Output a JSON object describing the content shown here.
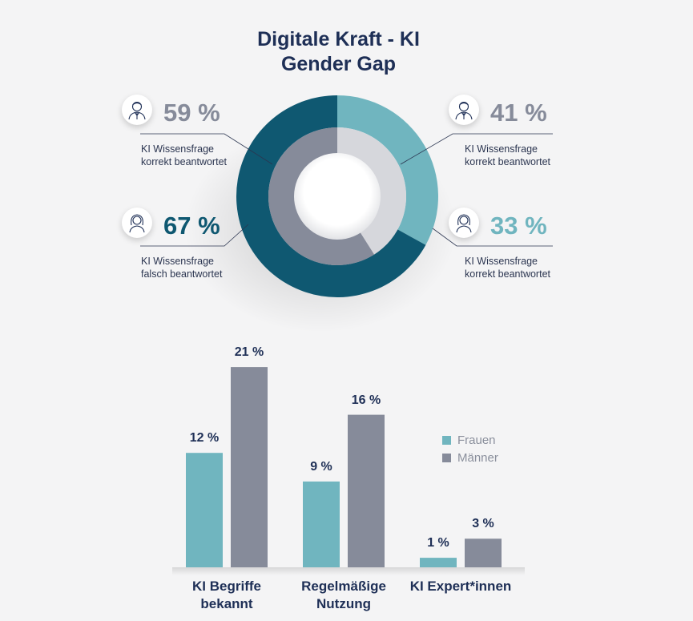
{
  "title": {
    "line1": "Digitale Kraft - KI",
    "line2": "Gender Gap"
  },
  "colors": {
    "teal": "#70b5bf",
    "gray": "#868b9a",
    "dark_teal": "#0f5871",
    "light_gray": "#d6d7dc",
    "navy": "#1e2f56"
  },
  "callouts": {
    "top_left": {
      "value": "59 %",
      "line1": "KI Wissensfrage",
      "line2": "korrekt beantwortet",
      "icon": "man-icon"
    },
    "bottom_left": {
      "value": "67 %",
      "line1": "KI Wissensfrage",
      "line2": "falsch beantwortet",
      "icon": "woman-icon"
    },
    "top_right": {
      "value": "41 %",
      "line1": "KI Wissensfrage",
      "line2": "korrekt beantwortet",
      "icon": "man-icon"
    },
    "bottom_right": {
      "value": "33 %",
      "line1": "KI Wissensfrage",
      "line2": "korrekt beantwortet",
      "icon": "woman-icon"
    }
  },
  "chart_data": [
    {
      "type": "pie",
      "rings": [
        {
          "name": "outer",
          "slices": [
            {
              "label": "KI Wissensfrage korrekt beantwortet",
              "value": 33,
              "color": "#70b5bf"
            },
            {
              "label": "KI Wissensfrage falsch beantwortet",
              "value": 67,
              "color": "#0f5871"
            }
          ]
        },
        {
          "name": "inner",
          "slices": [
            {
              "label": "KI Wissensfrage korrekt beantwortet",
              "value": 41,
              "color": "#d6d7dc"
            },
            {
              "label": "KI Wissensfrage korrekt beantwortet",
              "value": 59,
              "color": "#868b9a"
            }
          ]
        }
      ]
    },
    {
      "type": "bar",
      "categories": [
        {
          "line1": "KI Begriffe",
          "line2": "bekannt"
        },
        {
          "line1": "Regelmäßige",
          "line2": "Nutzung"
        },
        {
          "line1": "KI Expert*innen",
          "line2": ""
        }
      ],
      "series": [
        {
          "name": "Frauen",
          "color": "#70b5bf",
          "values": [
            12,
            9,
            1
          ],
          "labels": [
            "12 %",
            "9 %",
            "1 %"
          ]
        },
        {
          "name": "Männer",
          "color": "#868b9a",
          "values": [
            21,
            16,
            3
          ],
          "labels": [
            "21 %",
            "16 %",
            "3 %"
          ]
        }
      ],
      "legend_position": "right",
      "grid": false
    }
  ]
}
